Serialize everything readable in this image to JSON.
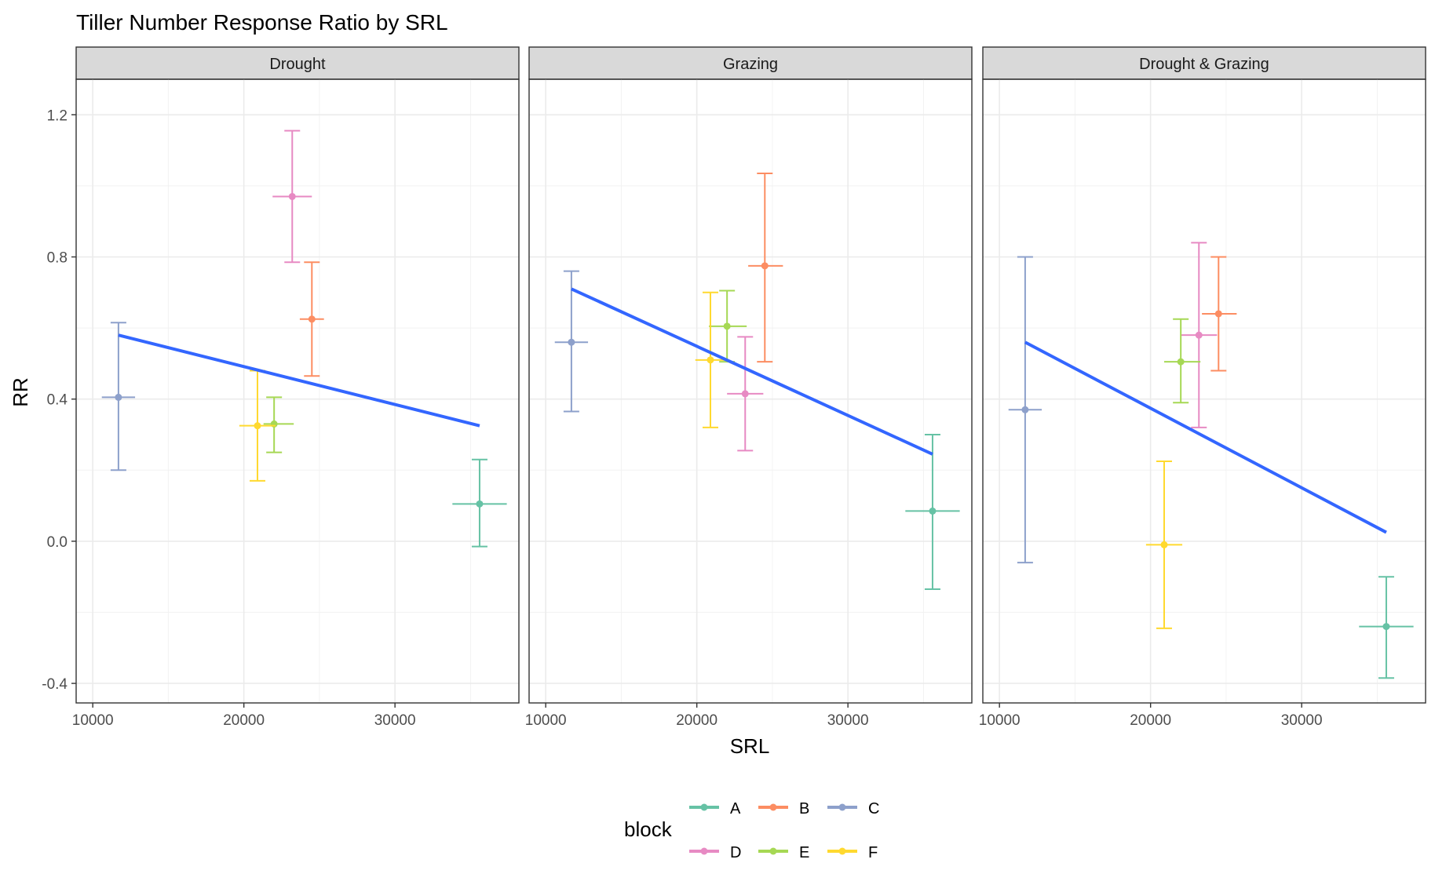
{
  "chart_data": {
    "type": "scatter",
    "title": "Tiller Number Response Ratio by SRL",
    "xlabel": "SRL",
    "ylabel": "RR",
    "xlim": [
      8900,
      38200
    ],
    "ylim": [
      -0.455,
      1.3
    ],
    "x_ticks": [
      10000,
      20000,
      30000
    ],
    "x_tick_labels": [
      "10000",
      "20000",
      "30000"
    ],
    "y_ticks": [
      -0.4,
      0.0,
      0.4,
      0.8,
      1.2
    ],
    "y_tick_labels": [
      "-0.4",
      "0.0",
      "0.4",
      "0.8",
      "1.2"
    ],
    "grid": true,
    "legend": {
      "title": "block",
      "position": "bottom",
      "entries": [
        "A",
        "B",
        "C",
        "D",
        "E",
        "F"
      ]
    },
    "colors": {
      "A": "#66C2A5",
      "B": "#FC8D62",
      "C": "#8DA0CB",
      "D": "#E78AC3",
      "E": "#A6D854",
      "F": "#FFD92F",
      "fit_line": "#3366FF"
    },
    "facets": [
      {
        "name": "Drought",
        "points": [
          {
            "block": "A",
            "x": 35600,
            "xmin": 33800,
            "xmax": 37400,
            "y": 0.105,
            "ymin": -0.015,
            "ymax": 0.23
          },
          {
            "block": "B",
            "x": 24500,
            "xmin": 23700,
            "xmax": 25300,
            "y": 0.625,
            "ymin": 0.465,
            "ymax": 0.785
          },
          {
            "block": "C",
            "x": 11700,
            "xmin": 10600,
            "xmax": 12800,
            "y": 0.405,
            "ymin": 0.2,
            "ymax": 0.615
          },
          {
            "block": "D",
            "x": 23200,
            "xmin": 21900,
            "xmax": 24500,
            "y": 0.97,
            "ymin": 0.785,
            "ymax": 1.155
          },
          {
            "block": "E",
            "x": 22000,
            "xmin": 21300,
            "xmax": 23300,
            "y": 0.33,
            "ymin": 0.25,
            "ymax": 0.405
          },
          {
            "block": "F",
            "x": 20900,
            "xmin": 19700,
            "xmax": 22100,
            "y": 0.325,
            "ymin": 0.17,
            "ymax": 0.48
          }
        ],
        "fit": {
          "x": [
            11700,
            35600
          ],
          "y": [
            0.58,
            0.325
          ]
        }
      },
      {
        "name": "Grazing",
        "points": [
          {
            "block": "A",
            "x": 35600,
            "xmin": 33800,
            "xmax": 37400,
            "y": 0.085,
            "ymin": -0.135,
            "ymax": 0.3
          },
          {
            "block": "B",
            "x": 24500,
            "xmin": 23400,
            "xmax": 25700,
            "y": 0.775,
            "ymin": 0.505,
            "ymax": 1.035
          },
          {
            "block": "C",
            "x": 11700,
            "xmin": 10600,
            "xmax": 12800,
            "y": 0.56,
            "ymin": 0.365,
            "ymax": 0.76
          },
          {
            "block": "D",
            "x": 23200,
            "xmin": 22000,
            "xmax": 24400,
            "y": 0.415,
            "ymin": 0.255,
            "ymax": 0.575
          },
          {
            "block": "E",
            "x": 22000,
            "xmin": 20800,
            "xmax": 23300,
            "y": 0.605,
            "ymin": 0.505,
            "ymax": 0.705
          },
          {
            "block": "F",
            "x": 20900,
            "xmin": 19900,
            "xmax": 22100,
            "y": 0.51,
            "ymin": 0.32,
            "ymax": 0.7
          }
        ],
        "fit": {
          "x": [
            11700,
            35600
          ],
          "y": [
            0.71,
            0.245
          ]
        }
      },
      {
        "name": "Drought & Grazing",
        "points": [
          {
            "block": "A",
            "x": 35600,
            "xmin": 33800,
            "xmax": 37400,
            "y": -0.24,
            "ymin": -0.385,
            "ymax": -0.1
          },
          {
            "block": "B",
            "x": 24500,
            "xmin": 23400,
            "xmax": 25700,
            "y": 0.64,
            "ymin": 0.48,
            "ymax": 0.8
          },
          {
            "block": "C",
            "x": 11700,
            "xmin": 10600,
            "xmax": 12800,
            "y": 0.37,
            "ymin": -0.06,
            "ymax": 0.8
          },
          {
            "block": "D",
            "x": 23200,
            "xmin": 22000,
            "xmax": 24400,
            "y": 0.58,
            "ymin": 0.32,
            "ymax": 0.84
          },
          {
            "block": "E",
            "x": 22000,
            "xmin": 20900,
            "xmax": 23300,
            "y": 0.505,
            "ymin": 0.39,
            "ymax": 0.625
          },
          {
            "block": "F",
            "x": 20900,
            "xmin": 19700,
            "xmax": 22100,
            "y": -0.01,
            "ymin": -0.245,
            "ymax": 0.225
          }
        ],
        "fit": {
          "x": [
            11700,
            35600
          ],
          "y": [
            0.56,
            0.025
          ]
        }
      }
    ]
  }
}
